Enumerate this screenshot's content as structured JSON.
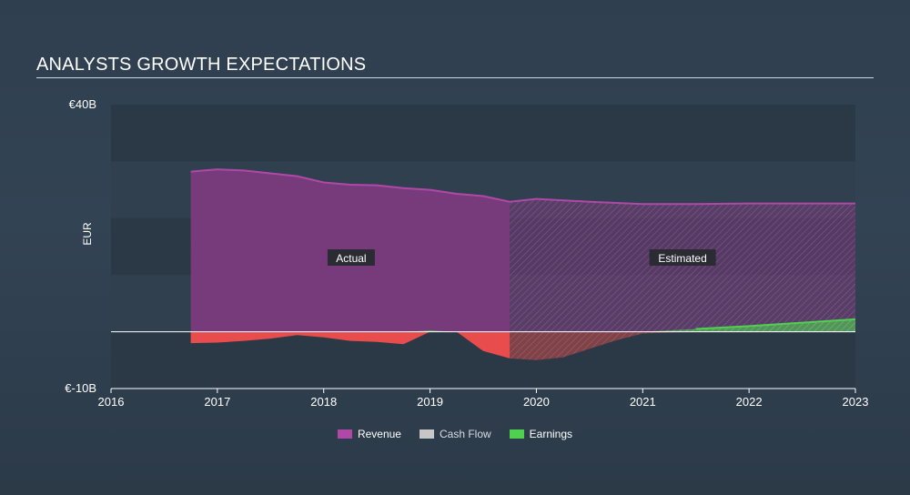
{
  "title": "ANALYSTS GROWTH EXPECTATIONS",
  "colors": {
    "revenue": "#7b3b7e",
    "revenue_line": "#b048a8",
    "cashflow": "#c7c7c7",
    "earnings": "#4fd04f",
    "loss": "#e84c4c",
    "band_dark": "#2b3947",
    "band_light": "#30404f"
  },
  "chart_data": {
    "type": "area",
    "ylabel": "EUR",
    "y_tick_labels": [
      "€40B",
      "€-10B"
    ],
    "ylim": [
      -10,
      40
    ],
    "xlim": [
      2016,
      2023
    ],
    "x_tick_labels": [
      "2016",
      "2017",
      "2018",
      "2019",
      "2020",
      "2021",
      "2022",
      "2023"
    ],
    "x_ticks": [
      2016,
      2017,
      2018,
      2019,
      2020,
      2021,
      2022,
      2023
    ],
    "actual_end": 2019.75,
    "annotations": [
      "Actual",
      "Estimated"
    ],
    "series": [
      {
        "name": "Revenue",
        "points": [
          [
            2016.75,
            28.2
          ],
          [
            2017.0,
            28.6
          ],
          [
            2017.25,
            28.4
          ],
          [
            2017.5,
            27.9
          ],
          [
            2017.75,
            27.4
          ],
          [
            2018.0,
            26.3
          ],
          [
            2018.25,
            25.9
          ],
          [
            2018.5,
            25.8
          ],
          [
            2018.75,
            25.3
          ],
          [
            2019.0,
            25.0
          ],
          [
            2019.25,
            24.3
          ],
          [
            2019.5,
            23.9
          ],
          [
            2019.75,
            22.9
          ],
          [
            2020.0,
            23.4
          ],
          [
            2020.5,
            22.9
          ],
          [
            2021.0,
            22.5
          ],
          [
            2021.5,
            22.5
          ],
          [
            2022.0,
            22.6
          ],
          [
            2022.5,
            22.6
          ],
          [
            2023.0,
            22.6
          ]
        ]
      },
      {
        "name": "Cash Flow",
        "points": []
      },
      {
        "name": "Earnings",
        "points": [
          [
            2016.75,
            -2.0
          ],
          [
            2017.0,
            -1.9
          ],
          [
            2017.25,
            -1.6
          ],
          [
            2017.5,
            -1.2
          ],
          [
            2017.75,
            -0.6
          ],
          [
            2018.0,
            -1.0
          ],
          [
            2018.25,
            -1.6
          ],
          [
            2018.5,
            -1.8
          ],
          [
            2018.75,
            -2.2
          ],
          [
            2019.0,
            0.2
          ],
          [
            2019.25,
            0.0
          ],
          [
            2019.5,
            -3.4
          ],
          [
            2019.75,
            -4.7
          ],
          [
            2020.0,
            -5.0
          ],
          [
            2020.25,
            -4.5
          ],
          [
            2020.5,
            -3.0
          ],
          [
            2020.75,
            -1.5
          ],
          [
            2021.0,
            -0.3
          ],
          [
            2021.5,
            0.5
          ],
          [
            2022.0,
            1.0
          ],
          [
            2022.5,
            1.6
          ],
          [
            2023.0,
            2.2
          ]
        ]
      }
    ]
  },
  "legend": [
    {
      "label": "Revenue",
      "color": "#b048a8"
    },
    {
      "label": "Cash Flow",
      "color": "#c7c7c7"
    },
    {
      "label": "Earnings",
      "color": "#4fd04f"
    }
  ]
}
